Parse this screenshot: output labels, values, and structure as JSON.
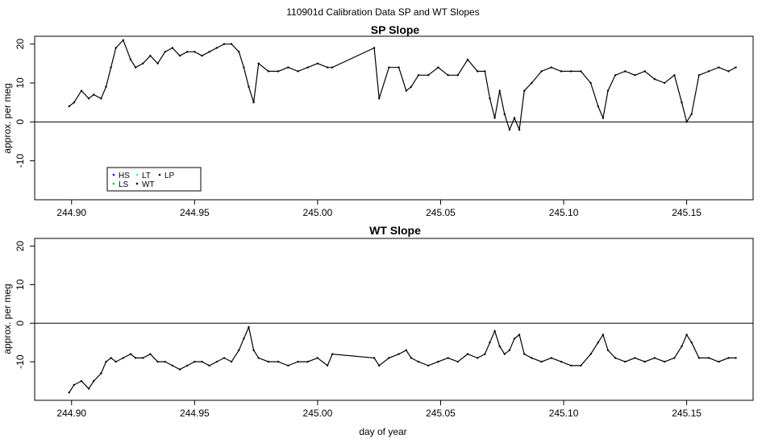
{
  "figure": {
    "title": "110901d   Calibration Data SP and WT Slopes",
    "xlabel": "day of year"
  },
  "chart_data": [
    {
      "type": "line",
      "title": "SP Slope",
      "xlabel": "",
      "ylabel": "approx. per meg",
      "xlim": [
        244.885,
        245.177
      ],
      "ylim": [
        -20,
        22
      ],
      "xticks": [
        244.9,
        244.95,
        245.0,
        245.05,
        245.1,
        245.15
      ],
      "xtick_labels": [
        "244.90",
        "244.95",
        "245.00",
        "245.05",
        "245.10",
        "245.15"
      ],
      "yticks": [
        -10,
        0,
        10,
        20
      ],
      "ytick_labels": [
        "-10",
        "0",
        "10",
        "20"
      ],
      "reference_line": 0,
      "legend": {
        "position": "bottom-left",
        "entries": [
          {
            "label": "HS",
            "color": "#0000ff"
          },
          {
            "label": "LS",
            "color": "#00cc00"
          },
          {
            "label": "LT",
            "color": "#00ffff"
          },
          {
            "label": "WT",
            "color": "#000000"
          },
          {
            "label": "LP",
            "color": "#000000"
          }
        ]
      },
      "series": [
        {
          "name": "WT",
          "color": "#000000",
          "x": [
            244.899,
            244.901,
            244.904,
            244.907,
            244.909,
            244.912,
            244.914,
            244.916,
            244.918,
            244.921,
            244.924,
            244.926,
            244.929,
            244.932,
            244.935,
            244.938,
            244.941,
            244.944,
            244.947,
            244.95,
            244.953,
            244.956,
            244.959,
            244.962,
            244.965,
            244.968,
            244.97,
            244.972,
            244.974,
            244.976,
            244.98,
            244.984,
            244.988,
            244.992,
            244.996,
            245.0,
            245.004,
            245.006,
            245.023,
            245.025,
            245.029,
            245.033,
            245.036,
            245.038,
            245.041,
            245.045,
            245.049,
            245.053,
            245.057,
            245.061,
            245.065,
            245.068,
            245.07,
            245.072,
            245.074,
            245.076,
            245.078,
            245.08,
            245.082,
            245.084,
            245.087,
            245.091,
            245.095,
            245.099,
            245.103,
            245.107,
            245.111,
            245.114,
            245.116,
            245.118,
            245.121,
            245.125,
            245.129,
            245.133,
            245.137,
            245.141,
            245.145,
            245.148,
            245.15,
            245.152,
            245.155,
            245.159,
            245.163,
            245.167,
            245.17
          ],
          "y": [
            4,
            5,
            8,
            6,
            7,
            6,
            9,
            14,
            19,
            21,
            16,
            14,
            15,
            17,
            15,
            18,
            19,
            17,
            18,
            18,
            17,
            18,
            19,
            20,
            20,
            18,
            14,
            9,
            5,
            15,
            13,
            13,
            14,
            13,
            14,
            15,
            14,
            14,
            19,
            6,
            14,
            14,
            8,
            9,
            12,
            12,
            14,
            12,
            12,
            16,
            13,
            13,
            6,
            1,
            8,
            2,
            -2,
            1,
            -2,
            8,
            10,
            13,
            14,
            13,
            13,
            13,
            10,
            4,
            1,
            8,
            12,
            13,
            12,
            13,
            11,
            10,
            12,
            5,
            0,
            2,
            12,
            13,
            14,
            13,
            14
          ]
        }
      ]
    },
    {
      "type": "line",
      "title": "WT Slope",
      "xlabel": "day of year",
      "ylabel": "approx. per meg",
      "xlim": [
        244.885,
        245.177
      ],
      "ylim": [
        -20,
        22
      ],
      "xticks": [
        244.9,
        244.95,
        245.0,
        245.05,
        245.1,
        245.15
      ],
      "xtick_labels": [
        "244.90",
        "244.95",
        "245.00",
        "245.05",
        "245.10",
        "245.15"
      ],
      "yticks": [
        -10,
        0,
        10,
        20
      ],
      "ytick_labels": [
        "-10",
        "0",
        "10",
        "20"
      ],
      "reference_line": 0,
      "series": [
        {
          "name": "WT",
          "color": "#000000",
          "x": [
            244.899,
            244.901,
            244.904,
            244.907,
            244.909,
            244.912,
            244.914,
            244.916,
            244.918,
            244.921,
            244.924,
            244.926,
            244.929,
            244.932,
            244.935,
            244.938,
            244.941,
            244.944,
            244.947,
            244.95,
            244.953,
            244.956,
            244.959,
            244.962,
            244.965,
            244.968,
            244.97,
            244.972,
            244.974,
            244.976,
            244.98,
            244.984,
            244.988,
            244.992,
            244.996,
            245.0,
            245.004,
            245.006,
            245.023,
            245.025,
            245.029,
            245.033,
            245.036,
            245.038,
            245.041,
            245.045,
            245.049,
            245.053,
            245.057,
            245.061,
            245.065,
            245.068,
            245.07,
            245.072,
            245.074,
            245.076,
            245.078,
            245.08,
            245.082,
            245.084,
            245.087,
            245.091,
            245.095,
            245.099,
            245.103,
            245.107,
            245.111,
            245.114,
            245.116,
            245.118,
            245.121,
            245.125,
            245.129,
            245.133,
            245.137,
            245.141,
            245.145,
            245.148,
            245.15,
            245.152,
            245.155,
            245.159,
            245.163,
            245.167,
            245.17
          ],
          "y": [
            -18,
            -16,
            -15,
            -17,
            -15,
            -13,
            -10,
            -9,
            -10,
            -9,
            -8,
            -9,
            -9,
            -8,
            -10,
            -10,
            -11,
            -12,
            -11,
            -10,
            -10,
            -11,
            -10,
            -9,
            -10,
            -7,
            -4,
            -1,
            -7,
            -9,
            -10,
            -10,
            -11,
            -10,
            -10,
            -9,
            -11,
            -8,
            -9,
            -11,
            -9,
            -8,
            -7,
            -9,
            -10,
            -11,
            -10,
            -9,
            -10,
            -8,
            -9,
            -8,
            -5,
            -2,
            -6,
            -8,
            -7,
            -4,
            -3,
            -8,
            -9,
            -10,
            -9,
            -10,
            -11,
            -11,
            -8,
            -5,
            -3,
            -7,
            -9,
            -10,
            -9,
            -10,
            -9,
            -10,
            -9,
            -6,
            -3,
            -5,
            -9,
            -9,
            -10,
            -9,
            -9
          ]
        }
      ]
    }
  ]
}
